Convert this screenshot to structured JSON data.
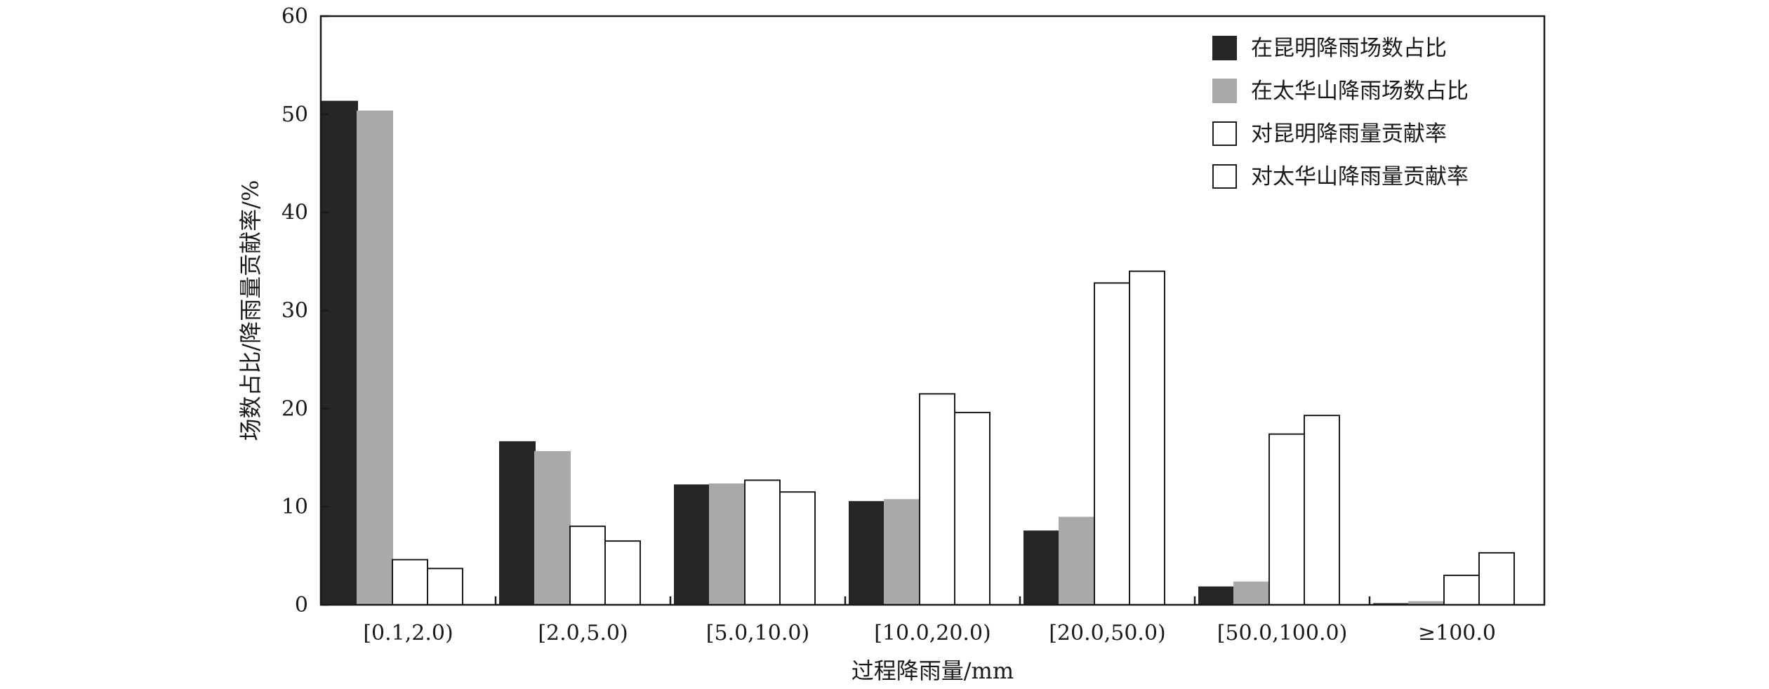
{
  "chart_data": {
    "type": "bar",
    "xlabel": "过程降雨量/mm",
    "ylabel": "场数占比/降雨量贡献率/%",
    "ylim": [
      0,
      60
    ],
    "yticks": [
      0,
      10,
      20,
      30,
      40,
      50,
      60
    ],
    "grid": false,
    "legend_position": "top-right",
    "categories": [
      "[0.1,2.0)",
      "[2.0,5.0)",
      "[5.0,10.0)",
      "[10.0,20.0)",
      "[20.0,50.0)",
      "[50.0,100.0)",
      "≥100.0"
    ],
    "series": [
      {
        "name": "在昆明降雨场数占比",
        "color": "#262626",
        "stroke": "#262626",
        "values": [
          51.3,
          16.6,
          12.2,
          10.5,
          7.5,
          1.8,
          0.1
        ]
      },
      {
        "name": "在太华山降雨场数占比",
        "color": "#a8a9ab",
        "stroke": "#a8a9ab",
        "values": [
          50.3,
          15.6,
          12.3,
          10.7,
          8.9,
          2.3,
          0.3
        ]
      },
      {
        "name": "对昆明降雨量贡献率",
        "color": "#ffffff",
        "stroke": "#1a1a1a",
        "values": [
          4.6,
          8.0,
          12.7,
          21.5,
          32.8,
          17.4,
          3.0
        ]
      },
      {
        "name": "对太华山降雨量贡献率",
        "color": "#ffffff",
        "stroke": "#1a1a1a",
        "values": [
          3.7,
          6.5,
          11.5,
          19.6,
          34.0,
          19.3,
          5.3
        ]
      }
    ]
  }
}
